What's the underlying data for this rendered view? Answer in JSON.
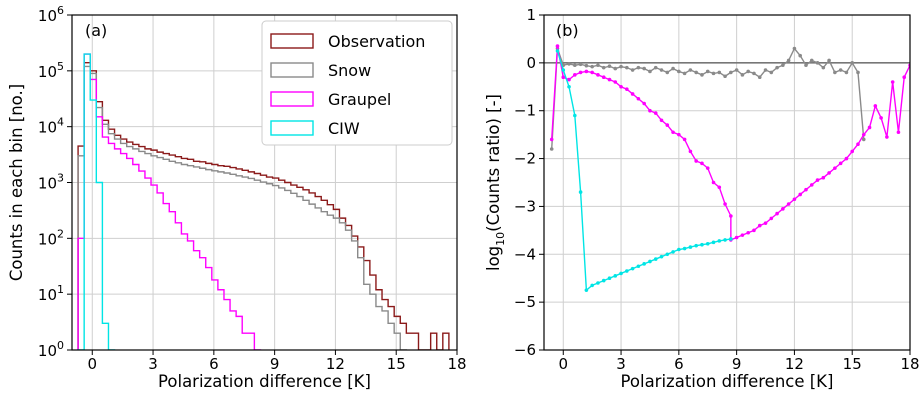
{
  "chart_data": [
    {
      "type": "line",
      "drawstyle": "step",
      "panel_label": "(a)",
      "xlabel": "Polarization difference [K]",
      "ylabel": "Counts in each bin [no.]",
      "yscale": "log",
      "xlim": [
        -1,
        18
      ],
      "ylim": [
        1,
        1000000
      ],
      "xticks": [
        "0",
        "3",
        "6",
        "9",
        "12",
        "15",
        "18"
      ],
      "yticks": [
        {
          "base": "10",
          "exp": "0"
        },
        {
          "base": "10",
          "exp": "1"
        },
        {
          "base": "10",
          "exp": "2"
        },
        {
          "base": "10",
          "exp": "3"
        },
        {
          "base": "10",
          "exp": "4"
        },
        {
          "base": "10",
          "exp": "5"
        },
        {
          "base": "10",
          "exp": "6"
        }
      ],
      "grid": true,
      "legend_position": "top-right",
      "series": [
        {
          "name": "Observation",
          "color": "#8b1a1a",
          "edges": [
            -0.7,
            -0.4,
            -0.1,
            0.2,
            0.5,
            0.8,
            1.1,
            1.4,
            1.7,
            2.0,
            2.3,
            2.6,
            2.9,
            3.2,
            3.5,
            3.8,
            4.1,
            4.4,
            4.7,
            5.0,
            5.3,
            5.6,
            5.9,
            6.2,
            6.5,
            6.8,
            7.1,
            7.4,
            7.7,
            8.0,
            8.3,
            8.6,
            8.9,
            9.2,
            9.5,
            9.8,
            10.1,
            10.4,
            10.7,
            11.0,
            11.3,
            11.6,
            11.9,
            12.2,
            12.5,
            12.8,
            13.1,
            13.4,
            13.7,
            14.0,
            14.3,
            14.6,
            14.9,
            15.2,
            15.5,
            15.8,
            16.1,
            16.4,
            16.7,
            17.0,
            17.3,
            17.6
          ],
          "values": [
            4500,
            140000,
            100000,
            28000,
            13000,
            9000,
            7000,
            6000,
            5300,
            4800,
            4400,
            4000,
            3800,
            3500,
            3300,
            3100,
            2900,
            2700,
            2600,
            2400,
            2350,
            2200,
            2100,
            2000,
            1950,
            1850,
            1750,
            1650,
            1550,
            1450,
            1350,
            1250,
            1200,
            1100,
            1000,
            900,
            820,
            740,
            650,
            560,
            480,
            400,
            330,
            230,
            170,
            110,
            70,
            40,
            22,
            12,
            8,
            6,
            4,
            3,
            2,
            2,
            1,
            1,
            2,
            1,
            2
          ]
        },
        {
          "name": "Snow",
          "color": "#8a8a8a",
          "edges": [
            -0.7,
            -0.4,
            -0.1,
            0.2,
            0.5,
            0.8,
            1.1,
            1.4,
            1.7,
            2.0,
            2.3,
            2.6,
            2.9,
            3.2,
            3.5,
            3.8,
            4.1,
            4.4,
            4.7,
            5.0,
            5.3,
            5.6,
            5.9,
            6.2,
            6.5,
            6.8,
            7.1,
            7.4,
            7.7,
            8.0,
            8.3,
            8.6,
            8.9,
            9.2,
            9.5,
            9.8,
            10.1,
            10.4,
            10.7,
            11.0,
            11.3,
            11.6,
            11.9,
            12.2,
            12.5,
            12.8,
            13.1,
            13.4,
            13.7,
            14.0,
            14.3,
            14.6,
            14.9,
            15.2,
            15.5
          ],
          "values": [
            3000,
            120000,
            90000,
            22000,
            11000,
            7500,
            6000,
            5000,
            4400,
            4000,
            3600,
            3300,
            3000,
            2800,
            2600,
            2400,
            2250,
            2100,
            2000,
            1900,
            1800,
            1700,
            1620,
            1550,
            1480,
            1400,
            1320,
            1250,
            1180,
            1100,
            1020,
            950,
            880,
            800,
            720,
            640,
            560,
            480,
            410,
            350,
            300,
            260,
            230,
            190,
            140,
            90,
            45,
            15,
            10,
            6,
            5,
            3,
            2,
            1
          ]
        },
        {
          "name": "Graupel",
          "color": "#ff00ff",
          "edges": [
            -0.7,
            -0.4,
            -0.1,
            0.2,
            0.5,
            0.8,
            1.1,
            1.4,
            1.7,
            2.0,
            2.3,
            2.6,
            2.9,
            3.2,
            3.5,
            3.8,
            4.1,
            4.4,
            4.7,
            5.0,
            5.3,
            5.6,
            5.9,
            6.2,
            6.5,
            6.8,
            7.1,
            7.4,
            7.7,
            8.0,
            8.3
          ],
          "values": [
            100,
            200000,
            70000,
            15000,
            6500,
            5000,
            4000,
            3300,
            2700,
            2100,
            1600,
            1200,
            900,
            650,
            420,
            300,
            190,
            120,
            90,
            60,
            45,
            30,
            18,
            12,
            8,
            5,
            4,
            2,
            2,
            1
          ]
        },
        {
          "name": "CIW",
          "color": "#00e5e5",
          "edges": [
            -0.7,
            -0.4,
            -0.1,
            0.2,
            0.5,
            0.8,
            1.1
          ],
          "values": [
            1,
            200000,
            30000,
            1000,
            3,
            1
          ]
        }
      ]
    },
    {
      "type": "line",
      "panel_label": "(b)",
      "xlabel": "Polarization difference [K]",
      "ylabel_parts": [
        "log",
        "10",
        "(Counts ratio) [-]"
      ],
      "xlim": [
        -1,
        18
      ],
      "ylim": [
        -6,
        1
      ],
      "xticks": [
        "0",
        "3",
        "6",
        "9",
        "12",
        "15",
        "18"
      ],
      "yticks": [
        "1",
        "0",
        "−1",
        "−2",
        "−3",
        "−4",
        "−5",
        "−6"
      ],
      "grid": true,
      "reference_line": 0,
      "series": [
        {
          "name": "Snow",
          "color": "#8a8a8a",
          "x": [
            -0.6,
            -0.3,
            0.0,
            0.3,
            0.6,
            0.9,
            1.2,
            1.5,
            1.8,
            2.1,
            2.4,
            2.7,
            3.0,
            3.3,
            3.6,
            3.9,
            4.2,
            4.5,
            4.8,
            5.1,
            5.4,
            5.7,
            6.0,
            6.3,
            6.6,
            6.9,
            7.2,
            7.5,
            7.8,
            8.1,
            8.4,
            8.7,
            9.0,
            9.3,
            9.6,
            9.9,
            10.2,
            10.5,
            10.8,
            11.1,
            11.4,
            11.7,
            12.0,
            12.3,
            12.6,
            12.9,
            13.2,
            13.5,
            13.8,
            14.1,
            14.4,
            14.7,
            15.0,
            15.3,
            15.6
          ],
          "y": [
            -1.8,
            0.3,
            -0.05,
            -0.02,
            -0.05,
            -0.03,
            -0.06,
            -0.08,
            -0.05,
            -0.1,
            -0.07,
            -0.12,
            -0.08,
            -0.1,
            -0.15,
            -0.1,
            -0.12,
            -0.18,
            -0.1,
            -0.15,
            -0.2,
            -0.12,
            -0.18,
            -0.22,
            -0.15,
            -0.2,
            -0.25,
            -0.18,
            -0.22,
            -0.2,
            -0.28,
            -0.2,
            -0.15,
            -0.25,
            -0.18,
            -0.22,
            -0.3,
            -0.15,
            -0.2,
            -0.1,
            -0.05,
            0.05,
            0.3,
            0.15,
            -0.05,
            0.05,
            0.0,
            -0.1,
            0.05,
            -0.2,
            -0.15,
            -0.2,
            0.0,
            -0.2,
            -1.6
          ]
        },
        {
          "name": "Graupel",
          "color": "#ff00ff",
          "x": [
            -0.6,
            -0.3,
            0.0,
            0.3,
            0.6,
            0.9,
            1.2,
            1.5,
            1.8,
            2.1,
            2.4,
            2.7,
            3.0,
            3.3,
            3.6,
            3.9,
            4.2,
            4.5,
            4.8,
            5.1,
            5.4,
            5.7,
            6.0,
            6.3,
            6.6,
            6.9,
            7.2,
            7.5,
            7.8,
            8.1,
            8.4,
            8.7,
            8.7,
            9.0,
            9.3,
            9.6,
            9.9,
            10.2,
            10.5,
            10.8,
            11.1,
            11.4,
            11.7,
            12.0,
            12.3,
            12.6,
            12.9,
            13.2,
            13.5,
            13.8,
            14.1,
            14.4,
            14.7,
            15.0,
            15.3,
            15.6,
            15.9,
            16.2,
            16.5,
            16.8,
            17.1,
            17.4,
            17.7,
            18.0
          ],
          "y": [
            -1.6,
            0.35,
            -0.3,
            -0.35,
            -0.25,
            -0.2,
            -0.18,
            -0.2,
            -0.25,
            -0.3,
            -0.35,
            -0.4,
            -0.5,
            -0.55,
            -0.65,
            -0.75,
            -0.85,
            -1.0,
            -1.05,
            -1.2,
            -1.3,
            -1.45,
            -1.5,
            -1.6,
            -1.85,
            -2.05,
            -2.1,
            -2.2,
            -2.5,
            -2.6,
            -2.95,
            -3.2,
            -3.7,
            -3.65,
            -3.6,
            -3.55,
            -3.5,
            -3.4,
            -3.35,
            -3.25,
            -3.15,
            -3.05,
            -2.95,
            -2.85,
            -2.75,
            -2.65,
            -2.55,
            -2.45,
            -2.4,
            -2.3,
            -2.2,
            -2.1,
            -2.0,
            -1.85,
            -1.7,
            -1.5,
            -1.35,
            -0.9,
            -1.15,
            -1.55,
            -0.4,
            -1.45,
            -0.3,
            -0.05
          ]
        },
        {
          "name": "CIW",
          "color": "#00e5e5",
          "x": [
            -0.3,
            0.0,
            0.3,
            0.6,
            0.9,
            1.2,
            1.5,
            1.8,
            2.1,
            2.4,
            2.7,
            3.0,
            3.3,
            3.6,
            3.9,
            4.2,
            4.5,
            4.8,
            5.1,
            5.4,
            5.7,
            6.0,
            6.3,
            6.6,
            6.9,
            7.2,
            7.5,
            7.8,
            8.1,
            8.4,
            8.7
          ],
          "y": [
            0.25,
            -0.15,
            -0.5,
            -1.1,
            -2.7,
            -4.75,
            -4.65,
            -4.6,
            -4.55,
            -4.5,
            -4.45,
            -4.4,
            -4.35,
            -4.3,
            -4.25,
            -4.2,
            -4.15,
            -4.1,
            -4.05,
            -4.0,
            -3.95,
            -3.9,
            -3.88,
            -3.85,
            -3.82,
            -3.8,
            -3.78,
            -3.75,
            -3.72,
            -3.7,
            -3.68
          ]
        }
      ]
    }
  ]
}
